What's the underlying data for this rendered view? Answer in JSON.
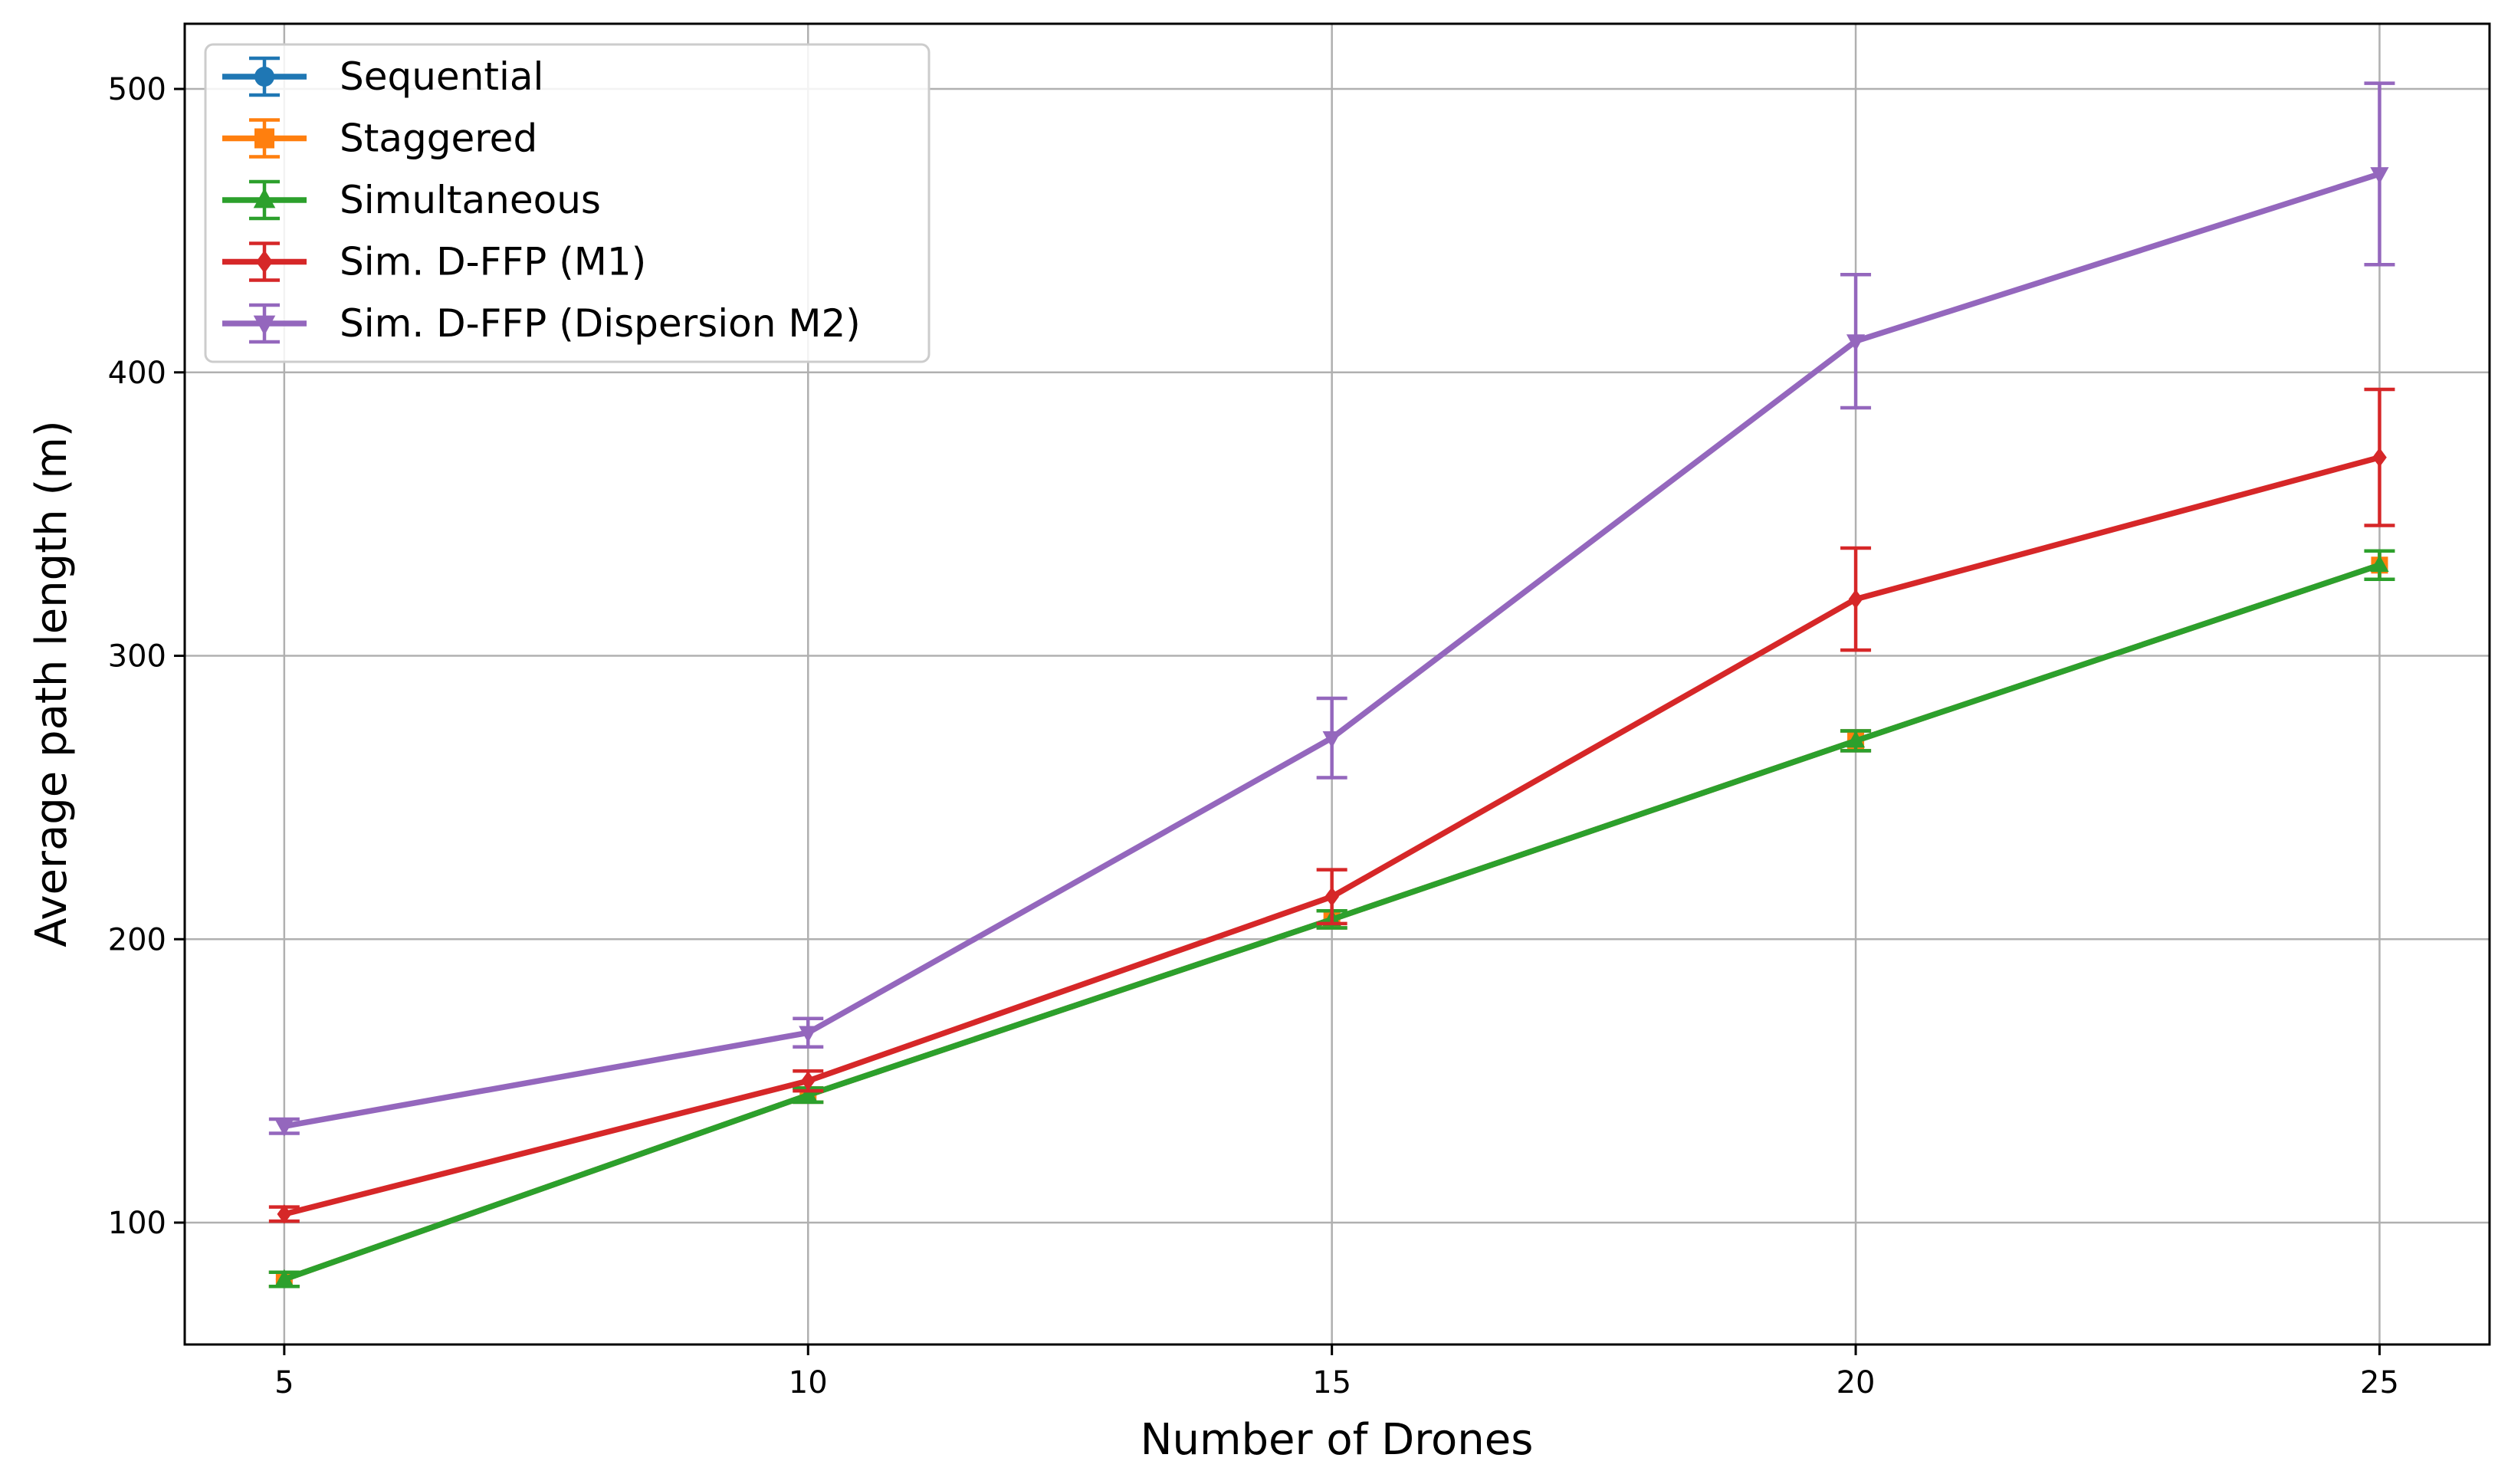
{
  "chart_data": {
    "type": "line",
    "title": "",
    "xlabel": "Number of Drones",
    "ylabel": "Average path length (m)",
    "x": [
      5,
      10,
      15,
      20,
      25
    ],
    "xlim": [
      4.05,
      26.05
    ],
    "ylim": [
      57,
      523
    ],
    "xticks": [
      5,
      10,
      15,
      20,
      25
    ],
    "yticks": [
      100,
      200,
      300,
      400,
      500
    ],
    "grid": true,
    "legend_position": "top-left",
    "series": [
      {
        "name": "Sequential",
        "color": "#1f77b4",
        "marker": "circle",
        "values": [
          80,
          145,
          207,
          270,
          332
        ],
        "errors": [
          2.5,
          2.5,
          3,
          3.5,
          5
        ]
      },
      {
        "name": "Staggered",
        "color": "#ff7f0e",
        "marker": "square",
        "values": [
          80,
          145,
          207,
          270,
          332
        ],
        "errors": [
          2.5,
          2.5,
          3,
          3.5,
          5
        ]
      },
      {
        "name": "Simultaneous",
        "color": "#2ca02c",
        "marker": "triangle-up",
        "values": [
          80,
          145,
          207,
          270,
          332
        ],
        "errors": [
          2.5,
          2.5,
          3,
          3.5,
          5
        ]
      },
      {
        "name": "Sim. D-FFP (M1)",
        "color": "#d62728",
        "marker": "diamond",
        "values": [
          103,
          150,
          215,
          320,
          370
        ],
        "errors": [
          2.5,
          3.5,
          9.5,
          18,
          24
        ]
      },
      {
        "name": "Sim. D-FFP (Dispersion M2)",
        "color": "#9467bd",
        "marker": "triangle-down",
        "values": [
          134,
          167,
          271,
          411,
          470
        ],
        "errors": [
          2.5,
          5,
          14,
          23.5,
          32
        ]
      }
    ]
  }
}
